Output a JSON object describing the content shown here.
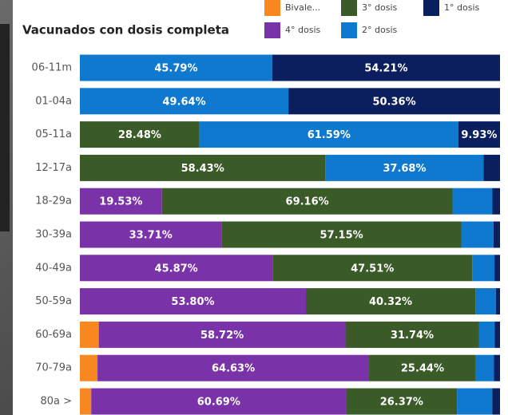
{
  "chart_data": {
    "type": "stacked-barh",
    "title": "Vacunados con dosis completa",
    "categories": [
      "06-11m",
      "01-04a",
      "05-11a",
      "12-17a",
      "18-29a",
      "30-39a",
      "40-49a",
      "50-59a",
      "60-69a",
      "70-79a",
      "80a >"
    ],
    "xlim": [
      0,
      100
    ],
    "series": [
      {
        "name": "Bivale...",
        "color": "#f7871e",
        "values": [
          null,
          null,
          null,
          null,
          null,
          null,
          null,
          null,
          4.5,
          4.2,
          2.7
        ],
        "value_labels": [
          null,
          null,
          null,
          null,
          null,
          null,
          null,
          null,
          null,
          null,
          null
        ]
      },
      {
        "name": "4° dosis",
        "color": "#7a32a8",
        "values": [
          null,
          null,
          null,
          null,
          19.53,
          33.71,
          45.87,
          53.8,
          58.72,
          64.63,
          60.69
        ],
        "value_labels": [
          null,
          null,
          null,
          null,
          "19.53%",
          "33.71%",
          "45.87%",
          "53.80%",
          "58.72%",
          "64.63%",
          "60.69%"
        ]
      },
      {
        "name": "3° dosis",
        "color": "#3a5a28",
        "values": [
          null,
          null,
          28.48,
          58.43,
          69.16,
          57.15,
          47.51,
          40.32,
          31.74,
          25.44,
          26.37
        ],
        "value_labels": [
          null,
          null,
          "28.48%",
          "58.43%",
          "69.16%",
          "57.15%",
          "47.51%",
          "40.32%",
          "31.74%",
          "25.44%",
          "26.37%"
        ]
      },
      {
        "name": "2° dosis",
        "color": "#0f78cf",
        "values": [
          45.79,
          49.64,
          61.59,
          37.68,
          9.5,
          7.6,
          5.3,
          4.9,
          3.8,
          4.3,
          8.4
        ],
        "value_labels": [
          "45.79%",
          "49.64%",
          "61.59%",
          "37.68%",
          null,
          null,
          null,
          null,
          null,
          null,
          null
        ]
      },
      {
        "name": "1° dosis",
        "color": "#0b1f5e",
        "values": [
          54.21,
          50.36,
          9.93,
          3.89,
          1.81,
          1.54,
          1.32,
          0.98,
          1.24,
          1.43,
          1.84
        ],
        "value_labels": [
          "54.21%",
          "50.36%",
          "9.93%",
          null,
          null,
          null,
          null,
          null,
          null,
          null,
          null
        ]
      }
    ]
  }
}
